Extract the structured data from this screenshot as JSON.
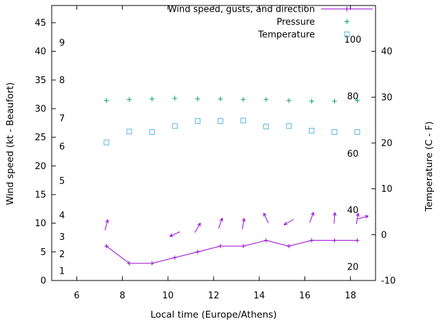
{
  "chart": {
    "background": "#ffffff",
    "text_color": "#000000",
    "x_axis": {
      "label": "Local time (Europe/Athens)",
      "min": 4.9,
      "max": 19.1,
      "ticks": [
        "6",
        "8",
        "10",
        "12",
        "14",
        "16",
        "18"
      ],
      "tick_values": [
        6,
        8,
        10,
        12,
        14,
        16,
        18
      ]
    },
    "y_left_axis": {
      "label": "Wind speed (kt - Beaufort)",
      "min": 0,
      "max": 48,
      "ticks": [
        "0",
        "5",
        "10",
        "15",
        "20",
        "25",
        "30",
        "35",
        "40",
        "45"
      ],
      "tick_values": [
        0,
        5,
        10,
        15,
        20,
        25,
        30,
        35,
        40,
        45
      ]
    },
    "y_right_axis": {
      "label": "Temperature (C - F)",
      "min": -10,
      "max": 50,
      "ticks": [
        "-10",
        "0",
        "10",
        "20",
        "30",
        "40"
      ],
      "tick_values": [
        -10,
        0,
        10,
        20,
        30,
        40
      ]
    },
    "beaufort_labels": [
      {
        "label": "1",
        "kt": 1.7
      },
      {
        "label": "2",
        "kt": 4.6
      },
      {
        "label": "3",
        "kt": 7.6
      },
      {
        "label": "4",
        "kt": 11.4
      },
      {
        "label": "5",
        "kt": 17.4
      },
      {
        "label": "6",
        "kt": 23.4
      },
      {
        "label": "7",
        "kt": 28.3
      },
      {
        "label": "8",
        "kt": 35.0
      },
      {
        "label": "9",
        "kt": 41.5
      }
    ],
    "fahrenheit_labels": [
      {
        "label": "20",
        "c": -7.0
      },
      {
        "label": "40",
        "c": 5.4
      },
      {
        "label": "60",
        "c": 17.7
      },
      {
        "label": "80",
        "c": 30.2
      },
      {
        "label": "100",
        "c": 42.6
      }
    ],
    "legend": {
      "position": "top-right-inside",
      "items": [
        {
          "label": "Wind speed, gusts, and direction",
          "color": "#9400d3",
          "sample": "line+plus"
        },
        {
          "label": "Pressure",
          "color": "#009e73",
          "sample": "plus"
        },
        {
          "label": "Temperature",
          "color": "#56b4e9",
          "sample": "square"
        }
      ]
    }
  },
  "chart_data": {
    "type": "line",
    "title": "",
    "xlabel": "Local time (Europe/Athens)",
    "ylabel_left": "Wind speed (kt - Beaufort)",
    "ylabel_right": "Temperature (C - F)",
    "xlim": [
      4.9,
      19.1
    ],
    "ylim_left": [
      0,
      48
    ],
    "ylim_right": [
      -10,
      50
    ],
    "grid": false,
    "legend_position": "top right inside",
    "x": [
      7.3,
      8.3,
      9.3,
      10.3,
      11.3,
      12.3,
      13.3,
      14.3,
      15.3,
      16.3,
      17.3,
      18.3
    ],
    "series": [
      {
        "name": "Wind speed",
        "unit": "kt",
        "axis": "left",
        "marker": "plus",
        "line": true,
        "values": [
          6,
          3,
          3,
          4,
          5,
          6,
          6,
          7,
          6,
          7,
          7,
          7
        ]
      },
      {
        "name": "Pressure",
        "unit": "left-axis plotted position (hPa values not shown)",
        "axis": "left",
        "marker": "plus",
        "line": false,
        "values": [
          31.4,
          31.6,
          31.7,
          31.8,
          31.7,
          31.7,
          31.6,
          31.6,
          31.4,
          31.3,
          31.3,
          31.4
        ]
      },
      {
        "name": "Temperature",
        "unit": "C",
        "axis": "right",
        "marker": "open-square",
        "line": false,
        "values": [
          20.1,
          22.5,
          22.4,
          23.7,
          24.8,
          24.8,
          24.9,
          23.6,
          23.7,
          22.7,
          22.4,
          22.4
        ]
      }
    ],
    "direction_arrows": [
      {
        "x": 7.3,
        "kt": 9.7,
        "angle_deg": 75
      },
      {
        "x": 10.3,
        "kt": 8.1,
        "angle_deg": 205
      },
      {
        "x": 11.3,
        "kt": 9.2,
        "angle_deg": 60
      },
      {
        "x": 12.3,
        "kt": 10.0,
        "angle_deg": 70
      },
      {
        "x": 13.3,
        "kt": 9.9,
        "angle_deg": 80
      },
      {
        "x": 14.3,
        "kt": 10.9,
        "angle_deg": 115
      },
      {
        "x": 15.3,
        "kt": 10.2,
        "angle_deg": 210
      },
      {
        "x": 16.3,
        "kt": 11.0,
        "angle_deg": 70
      },
      {
        "x": 17.3,
        "kt": 10.9,
        "angle_deg": 85
      },
      {
        "x": 18.3,
        "kt": 10.8,
        "angle_deg": 80
      },
      {
        "x": 18.55,
        "kt": 11.0,
        "angle_deg": 15
      }
    ]
  }
}
